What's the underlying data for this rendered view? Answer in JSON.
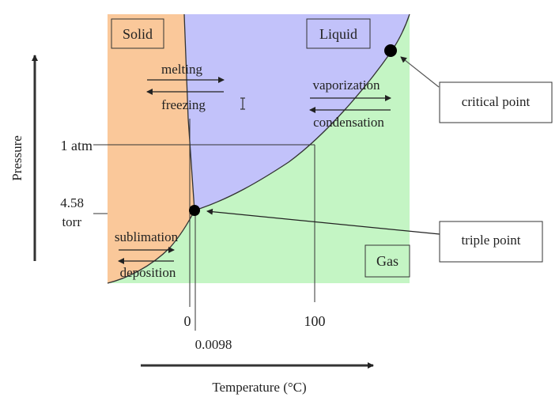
{
  "labels": {
    "solid": "Solid",
    "liquid": "Liquid",
    "gas": "Gas",
    "melting": "melting",
    "freezing": "freezing",
    "vaporization": "vaporization",
    "condensation": "condensation",
    "sublimation": "sublimation",
    "deposition": "deposition",
    "critical_point": "critical point",
    "triple_point": "triple point"
  },
  "axes": {
    "y_label": "Pressure",
    "x_label": "Temperature (°C)",
    "y_tick_1atm": "1 atm",
    "y_tick_458_line1": "4.58",
    "y_tick_458_line2": "torr",
    "x_tick_0": "0",
    "x_tick_0098": "0.0098",
    "x_tick_100": "100"
  },
  "colors": {
    "solid": "#fac89a",
    "liquid": "#c2c2fa",
    "gas": "#c4f5c4"
  }
}
